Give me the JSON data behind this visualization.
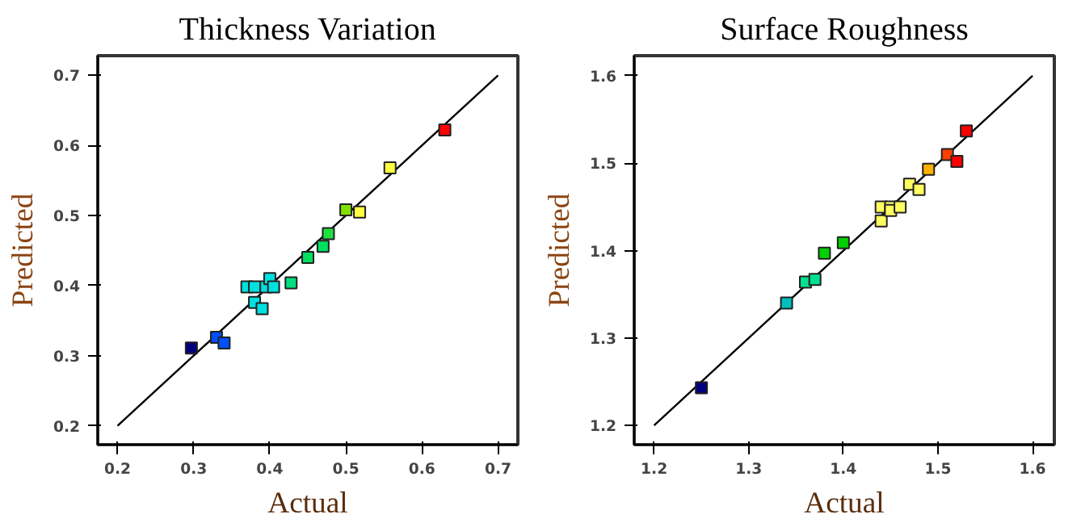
{
  "chart_data": [
    {
      "type": "scatter",
      "title": "Thickness Variation",
      "xlabel": "Actual",
      "ylabel": "Predicted",
      "grid": false,
      "xlim": [
        0.174,
        0.726
      ],
      "ylim": [
        0.173,
        0.728
      ],
      "xticks": [
        0.2,
        0.3,
        0.4,
        0.5,
        0.6,
        0.7
      ],
      "yticks": [
        0.2,
        0.3,
        0.4,
        0.5,
        0.6,
        0.7
      ],
      "series": [
        {
          "type": "line",
          "color": "#000000",
          "x": [
            0.2,
            0.7
          ],
          "values": [
            0.2,
            0.7
          ]
        },
        {
          "marker": "square",
          "x": [
            0.297,
            0.33,
            0.34,
            0.37,
            0.38,
            0.38,
            0.39,
            0.395,
            0.4,
            0.405,
            0.428,
            0.45,
            0.47,
            0.477,
            0.5,
            0.518,
            0.558,
            0.63
          ],
          "values": [
            0.311,
            0.326,
            0.318,
            0.398,
            0.398,
            0.376,
            0.367,
            0.398,
            0.41,
            0.398,
            0.404,
            0.44,
            0.456,
            0.474,
            0.508,
            0.505,
            0.568,
            0.622
          ],
          "colors": [
            "#000080",
            "#0050ff",
            "#0050ff",
            "#00e0e0",
            "#00e0e0",
            "#00e0e0",
            "#00e0e0",
            "#00e0e0",
            "#00e0e0",
            "#00e0e0",
            "#00e080",
            "#00e060",
            "#00e060",
            "#20e040",
            "#80e000",
            "#ffff40",
            "#ffff40",
            "#ff0000"
          ]
        }
      ]
    },
    {
      "type": "scatter",
      "title": "Surface Roughness",
      "xlabel": "Actual",
      "ylabel": "Predicted",
      "grid": false,
      "xlim": [
        1.179,
        1.623
      ],
      "ylim": [
        1.178,
        1.623
      ],
      "xticks": [
        1.2,
        1.3,
        1.4,
        1.5,
        1.6
      ],
      "yticks": [
        1.2,
        1.3,
        1.4,
        1.5,
        1.6
      ],
      "series": [
        {
          "type": "line",
          "color": "#000000",
          "x": [
            1.2,
            1.6
          ],
          "values": [
            1.2,
            1.6
          ]
        },
        {
          "marker": "square",
          "x": [
            1.25,
            1.34,
            1.36,
            1.37,
            1.38,
            1.4,
            1.44,
            1.44,
            1.45,
            1.45,
            1.46,
            1.47,
            1.48,
            1.49,
            1.51,
            1.52,
            1.53
          ],
          "values": [
            1.243,
            1.34,
            1.364,
            1.367,
            1.397,
            1.409,
            1.434,
            1.45,
            1.45,
            1.446,
            1.45,
            1.476,
            1.47,
            1.493,
            1.51,
            1.502,
            1.537
          ],
          "colors": [
            "#000080",
            "#00c0c0",
            "#00e090",
            "#00e090",
            "#00d000",
            "#00d000",
            "#ffff60",
            "#ffff60",
            "#ffff60",
            "#ffff60",
            "#ffff60",
            "#ffff60",
            "#ffff60",
            "#ffb000",
            "#ff4000",
            "#ff0000",
            "#ff0000"
          ]
        }
      ]
    }
  ]
}
